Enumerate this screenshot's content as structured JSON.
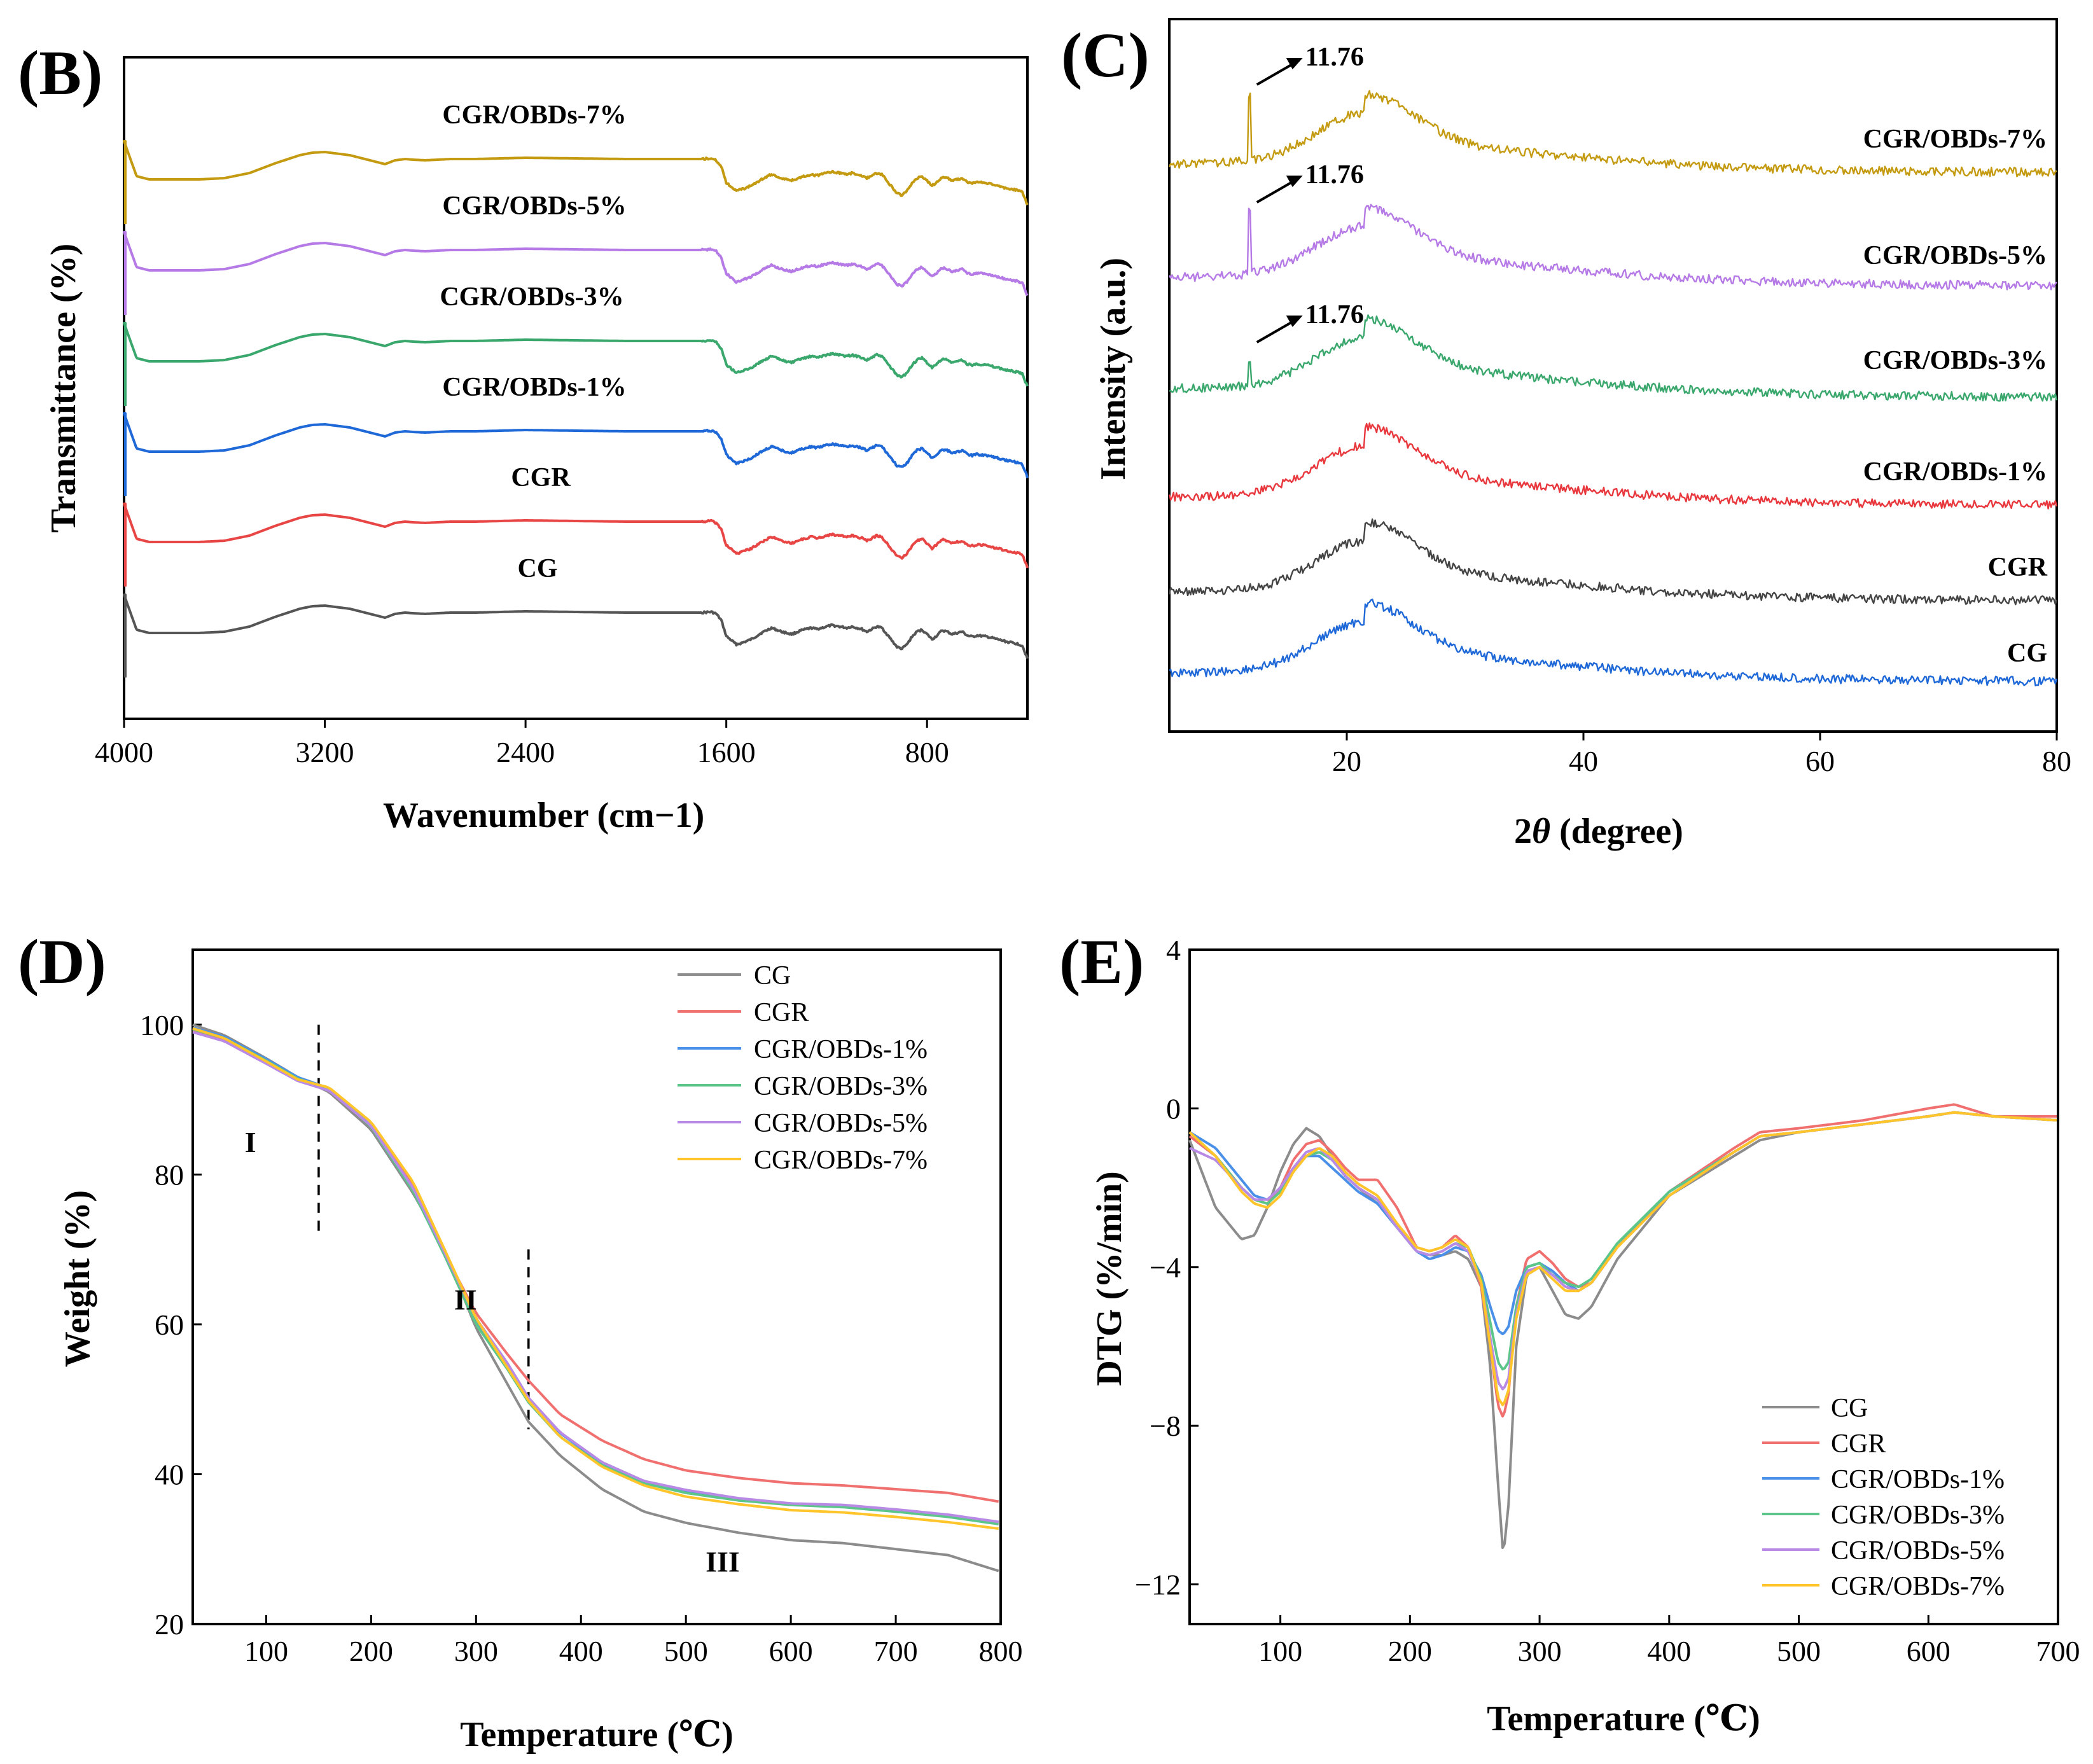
{
  "panels": {
    "B": {
      "label": "(B)"
    },
    "C": {
      "label": "(C)"
    },
    "D": {
      "label": "(D)"
    },
    "E": {
      "label": "(E)"
    }
  },
  "colors": {
    "CG_ftir": "#555555",
    "CGR_ftir": "#e84545",
    "OBD1_ftir": "#1f68d8",
    "OBD3_ftir": "#3aa76d",
    "OBD5_ftir": "#b57ae6",
    "OBD7_ftir": "#c49a10",
    "CG_xrd": "#1f68d8",
    "CGR_xrd": "#444444",
    "OBD1_xrd": "#e8383d",
    "OBD3_xrd": "#3aa76d",
    "OBD5_xrd": "#b57ae6",
    "OBD7_xrd": "#c49a10",
    "CG_t": "#8c8c8c",
    "CGR_t": "#f07070",
    "OBD1_t": "#4a8fe8",
    "OBD3_t": "#5cc68a",
    "OBD5_t": "#b88ae6",
    "OBD7_t": "#ffc52a"
  },
  "chart_data": [
    {
      "panel": "B",
      "type": "line",
      "title": "",
      "xlabel": "Wavenumber",
      "xunit": "(cm−1)",
      "ylabel": "Transmittance (%)",
      "xlim": [
        4000,
        400
      ],
      "x_ticks": [
        "4000",
        "3200",
        "2400",
        "1600",
        "800"
      ],
      "series": [
        {
          "name": "CG",
          "label": "CG",
          "offset": 0
        },
        {
          "name": "CGR",
          "label": "CGR",
          "offset": 1
        },
        {
          "name": "CGR/OBDs-1%",
          "label": "CGR/OBDs-1%",
          "offset": 2
        },
        {
          "name": "CGR/OBDs-3%",
          "label": "CGR/OBDs-3%",
          "offset": 3
        },
        {
          "name": "CGR/OBDs-5%",
          "label": "CGR/OBDs-5%",
          "offset": 4
        },
        {
          "name": "CGR/OBDs-7%",
          "label": "CGR/OBDs-7%",
          "offset": 5
        }
      ],
      "shape": {
        "x": [
          4000,
          3950,
          3900,
          3700,
          3600,
          3500,
          3400,
          3300,
          3250,
          3200,
          3100,
          3000,
          2960,
          2920,
          2880,
          2850,
          2800,
          2700,
          2600,
          2400,
          2000,
          1800,
          1700,
          1660,
          1640,
          1620,
          1600,
          1560,
          1540,
          1500,
          1460,
          1420,
          1380,
          1340,
          1300,
          1260,
          1240,
          1200,
          1180,
          1150,
          1120,
          1100,
          1080,
          1060,
          1040,
          1020,
          1000,
          980,
          960,
          940,
          920,
          900,
          880,
          860,
          840,
          820,
          800,
          780,
          760,
          740,
          720,
          700,
          680,
          660,
          640,
          620,
          600,
          560,
          520,
          480,
          440,
          420,
          400
        ],
        "y": [
          0,
          55,
          60,
          60,
          58,
          50,
          35,
          22,
          18,
          17,
          22,
          32,
          36,
          30,
          28,
          29,
          30,
          28,
          28,
          26,
          28,
          28,
          28,
          27,
          30,
          40,
          65,
          78,
          76,
          70,
          60,
          52,
          58,
          62,
          56,
          52,
          54,
          50,
          48,
          50,
          52,
          50,
          52,
          54,
          58,
          54,
          50,
          52,
          62,
          72,
          82,
          85,
          78,
          66,
          58,
          55,
          62,
          70,
          64,
          56,
          58,
          62,
          60,
          58,
          64,
          66,
          64,
          66,
          70,
          74,
          77,
          80,
          100
        ]
      },
      "annotations": []
    },
    {
      "panel": "C",
      "type": "line",
      "title": "",
      "xlabel_prefix": "2",
      "xlabel_theta": "θ",
      "xlabel_unit": " (degree)",
      "ylabel": "Intensity (a.u.)",
      "xlim": [
        5,
        80
      ],
      "x_ticks": [
        "20",
        "40",
        "60",
        "80"
      ],
      "series": [
        {
          "name": "CG",
          "label": "CG",
          "offset": 0,
          "spike": false
        },
        {
          "name": "CGR",
          "label": "CGR",
          "offset": 1,
          "spike": false
        },
        {
          "name": "CGR/OBDs-1%",
          "label": "CGR/OBDs-1%",
          "offset": 2,
          "spike": false
        },
        {
          "name": "CGR/OBDs-3%",
          "label": "CGR/OBDs-3%",
          "offset": 3,
          "spike": true
        },
        {
          "name": "CGR/OBDs-5%",
          "label": "CGR/OBDs-5%",
          "offset": 4,
          "spike": true
        },
        {
          "name": "CGR/OBDs-7%",
          "label": "CGR/OBDs-7%",
          "offset": 5,
          "spike": true
        }
      ],
      "peak_label": "11.76",
      "broad_peak_center": 21.5
    },
    {
      "panel": "D",
      "type": "line",
      "title": "",
      "xlabel": "Temperature (℃)",
      "ylabel": "Weight (%)",
      "xlim": [
        30,
        800
      ],
      "ylim": [
        20,
        110
      ],
      "x_ticks": [
        "100",
        "200",
        "300",
        "400",
        "500",
        "600",
        "700",
        "800"
      ],
      "y_ticks": [
        "20",
        "40",
        "60",
        "80",
        "100"
      ],
      "legend": [
        "CG",
        "CGR",
        "CGR/OBDs-1%",
        "CGR/OBDs-3%",
        "CGR/OBDs-5%",
        "CGR/OBDs-7%"
      ],
      "regions": [
        "I",
        "II",
        "III"
      ],
      "dividers_at": [
        150,
        350
      ],
      "x": [
        30,
        60,
        100,
        130,
        160,
        200,
        240,
        270,
        300,
        330,
        350,
        380,
        420,
        460,
        500,
        550,
        600,
        650,
        700,
        750,
        800
      ],
      "series": [
        {
          "name": "CG",
          "values": [
            100,
            98.6,
            95.5,
            93.0,
            91.0,
            86.0,
            77.5,
            70.0,
            59.5,
            52.0,
            47.0,
            42.5,
            38.0,
            35.0,
            33.5,
            32.2,
            31.2,
            30.8,
            30.0,
            29.2,
            27.0
          ]
        },
        {
          "name": "CGR",
          "values": [
            99.2,
            98.0,
            95.0,
            92.8,
            91.2,
            86.5,
            78.5,
            69.5,
            61.5,
            56.0,
            52.5,
            48.0,
            44.5,
            42.0,
            40.5,
            39.5,
            38.8,
            38.5,
            38.0,
            37.5,
            36.3
          ]
        },
        {
          "name": "CGR/OBDs-1%",
          "values": [
            99.6,
            98.4,
            95.4,
            93.0,
            91.5,
            86.5,
            78.0,
            69.5,
            60.5,
            54.5,
            50.0,
            45.5,
            41.5,
            39.0,
            37.8,
            36.7,
            36.0,
            35.8,
            35.2,
            34.5,
            33.5
          ]
        },
        {
          "name": "CGR/OBDs-3%",
          "values": [
            99.4,
            98.2,
            95.2,
            92.8,
            91.4,
            86.4,
            77.8,
            69.2,
            60.0,
            54.0,
            49.6,
            45.0,
            41.2,
            38.8,
            37.5,
            36.5,
            35.9,
            35.6,
            35.0,
            34.3,
            33.3
          ]
        },
        {
          "name": "CGR/OBDs-5%",
          "values": [
            99.0,
            97.8,
            94.8,
            92.5,
            91.2,
            86.5,
            78.2,
            69.6,
            60.8,
            54.8,
            50.2,
            45.6,
            41.6,
            39.1,
            37.9,
            36.8,
            36.1,
            35.9,
            35.3,
            34.6,
            33.6
          ]
        },
        {
          "name": "CGR/OBDs-7%",
          "values": [
            99.5,
            98.2,
            95.1,
            92.7,
            91.6,
            87.0,
            79.0,
            70.0,
            60.8,
            54.2,
            49.8,
            45.0,
            41.0,
            38.5,
            37.0,
            36.0,
            35.2,
            34.9,
            34.3,
            33.6,
            32.7
          ]
        }
      ]
    },
    {
      "panel": "E",
      "type": "line",
      "title": "",
      "xlabel": "Temperature (℃)",
      "ylabel": "DTG (%/min)",
      "xlim": [
        30,
        700
      ],
      "ylim": [
        -13,
        4
      ],
      "x_ticks": [
        "100",
        "200",
        "300",
        "400",
        "500",
        "600",
        "700"
      ],
      "y_ticks": [
        "−12",
        "−8",
        "−4",
        "0",
        "4"
      ],
      "legend": [
        "CG",
        "CGR",
        "CGR/OBDs-1%",
        "CGR/OBDs-3%",
        "CGR/OBDs-5%",
        "CGR/OBDs-7%"
      ],
      "x": [
        30,
        50,
        70,
        80,
        90,
        100,
        110,
        120,
        130,
        140,
        150,
        160,
        175,
        190,
        205,
        215,
        225,
        235,
        245,
        255,
        262,
        268,
        272,
        276,
        282,
        290,
        300,
        310,
        320,
        330,
        340,
        360,
        400,
        450,
        470,
        500,
        550,
        600,
        620,
        650,
        700
      ],
      "series": [
        {
          "name": "CG",
          "values": [
            -0.8,
            -2.5,
            -3.3,
            -3.2,
            -2.5,
            -1.6,
            -0.9,
            -0.5,
            -0.7,
            -1.2,
            -1.7,
            -2.0,
            -2.4,
            -3.0,
            -3.6,
            -3.7,
            -3.7,
            -3.6,
            -3.8,
            -4.5,
            -6.5,
            -9.5,
            -11.3,
            -10.0,
            -6.0,
            -4.2,
            -4.0,
            -4.6,
            -5.2,
            -5.3,
            -5.0,
            -3.8,
            -2.2,
            -1.2,
            -0.8,
            -0.6,
            -0.4,
            -0.2,
            -0.1,
            -0.2,
            -0.3
          ]
        },
        {
          "name": "CGR",
          "values": [
            -0.7,
            -1.2,
            -2.0,
            -2.3,
            -2.4,
            -2.0,
            -1.3,
            -0.9,
            -0.8,
            -1.1,
            -1.5,
            -1.8,
            -1.8,
            -2.5,
            -3.5,
            -3.6,
            -3.5,
            -3.2,
            -3.5,
            -4.5,
            -6.0,
            -7.5,
            -7.8,
            -7.2,
            -5.0,
            -3.8,
            -3.6,
            -3.9,
            -4.3,
            -4.5,
            -4.4,
            -3.5,
            -2.1,
            -1.0,
            -0.6,
            -0.5,
            -0.3,
            0.0,
            0.1,
            -0.2,
            -0.2
          ]
        },
        {
          "name": "CGR/OBDs-1%",
          "values": [
            -0.6,
            -1.0,
            -1.8,
            -2.2,
            -2.3,
            -2.0,
            -1.5,
            -1.2,
            -1.2,
            -1.5,
            -1.8,
            -2.1,
            -2.4,
            -3.0,
            -3.6,
            -3.8,
            -3.7,
            -3.5,
            -3.6,
            -4.2,
            -5.0,
            -5.6,
            -5.7,
            -5.5,
            -4.6,
            -4.0,
            -3.9,
            -4.1,
            -4.4,
            -4.6,
            -4.4,
            -3.5,
            -2.1,
            -1.1,
            -0.7,
            -0.6,
            -0.4,
            -0.2,
            -0.1,
            -0.2,
            -0.3
          ]
        },
        {
          "name": "CGR/OBDs-3%",
          "values": [
            -0.6,
            -1.2,
            -2.0,
            -2.3,
            -2.4,
            -2.1,
            -1.6,
            -1.2,
            -1.1,
            -1.3,
            -1.7,
            -2.0,
            -2.3,
            -3.0,
            -3.6,
            -3.7,
            -3.6,
            -3.4,
            -3.5,
            -4.3,
            -5.4,
            -6.4,
            -6.6,
            -6.4,
            -5.0,
            -4.0,
            -3.9,
            -4.2,
            -4.4,
            -4.5,
            -4.3,
            -3.4,
            -2.1,
            -1.1,
            -0.7,
            -0.6,
            -0.4,
            -0.2,
            -0.1,
            -0.2,
            -0.3
          ]
        },
        {
          "name": "CGR/OBDs-5%",
          "values": [
            -1.0,
            -1.3,
            -2.0,
            -2.3,
            -2.3,
            -2.0,
            -1.5,
            -1.1,
            -1.0,
            -1.3,
            -1.7,
            -2.0,
            -2.3,
            -3.0,
            -3.6,
            -3.7,
            -3.6,
            -3.4,
            -3.6,
            -4.4,
            -5.8,
            -6.9,
            -7.1,
            -6.8,
            -5.2,
            -4.1,
            -4.0,
            -4.2,
            -4.5,
            -4.6,
            -4.4,
            -3.5,
            -2.2,
            -1.1,
            -0.7,
            -0.6,
            -0.4,
            -0.2,
            -0.1,
            -0.2,
            -0.3
          ]
        },
        {
          "name": "CGR/OBDs-7%",
          "values": [
            -0.6,
            -1.2,
            -2.1,
            -2.4,
            -2.5,
            -2.2,
            -1.6,
            -1.2,
            -1.0,
            -1.2,
            -1.6,
            -1.9,
            -2.2,
            -2.9,
            -3.5,
            -3.6,
            -3.5,
            -3.3,
            -3.5,
            -4.4,
            -6.0,
            -7.3,
            -7.5,
            -7.1,
            -5.3,
            -4.2,
            -4.0,
            -4.3,
            -4.6,
            -4.6,
            -4.4,
            -3.5,
            -2.2,
            -1.1,
            -0.7,
            -0.6,
            -0.4,
            -0.2,
            -0.1,
            -0.2,
            -0.3
          ]
        }
      ]
    }
  ]
}
